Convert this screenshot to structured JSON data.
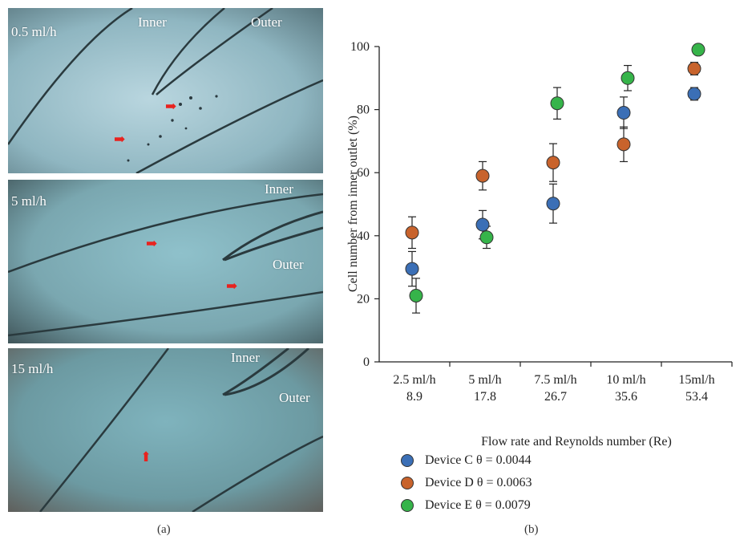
{
  "panel_a": {
    "caption": "(a)",
    "images": [
      {
        "flow": "0.5 ml/h",
        "inner": "Inner",
        "outer": "Outer"
      },
      {
        "flow": "5 ml/h",
        "inner": "Inner",
        "outer": "Outer"
      },
      {
        "flow": "15 ml/h",
        "inner": "Inner",
        "outer": "Outer"
      }
    ],
    "arrow_color": "#e8231f"
  },
  "chart_data": {
    "type": "scatter",
    "caption": "(b)",
    "ylabel": "Cell number from inner outlet (%)",
    "xlabel": "Flow rate and Reynolds number (Re)",
    "ylim": [
      0,
      100
    ],
    "yticks": [
      0,
      20,
      40,
      60,
      80,
      100
    ],
    "categories": [
      {
        "flow": "2.5 ml/h",
        "re": "8.9"
      },
      {
        "flow": "5 ml/h",
        "re": "17.8"
      },
      {
        "flow": "7.5 ml/h",
        "re": "26.7"
      },
      {
        "flow": "10 ml/h",
        "re": "35.6"
      },
      {
        "flow": "15ml/h",
        "re": "53.4"
      }
    ],
    "series": [
      {
        "name": "Device C θ = 0.0044",
        "color": "#3b6fb6",
        "values": [
          29.5,
          43.5,
          50.2,
          79,
          85
        ],
        "errors": [
          5.5,
          4.5,
          6.2,
          5,
          2
        ]
      },
      {
        "name": "Device D θ = 0.0063",
        "color": "#c8632c",
        "values": [
          41,
          59,
          63.2,
          69,
          93
        ],
        "errors": [
          5,
          4.5,
          6,
          5.5,
          2
        ]
      },
      {
        "name": "Device E θ = 0.0079",
        "color": "#36b44a",
        "values": [
          21,
          39.5,
          82,
          90,
          99
        ],
        "errors": [
          5.5,
          3.5,
          5,
          4,
          1.5
        ]
      }
    ],
    "legend_position": "bottom-left"
  }
}
